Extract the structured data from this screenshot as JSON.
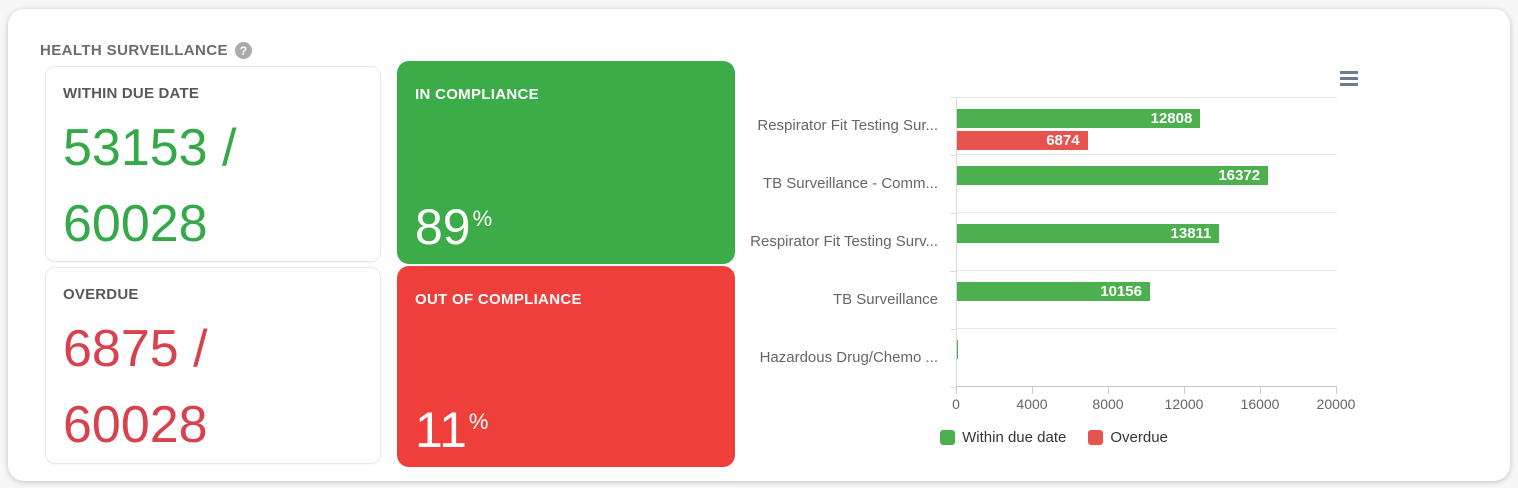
{
  "page": {
    "title": "HEALTH SURVEILLANCE",
    "help_glyph": "?"
  },
  "cards": {
    "within": {
      "label": "WITHIN DUE DATE",
      "line1": "53153 /",
      "line2": "60028"
    },
    "overdue": {
      "label": "OVERDUE",
      "line1": "6875 /",
      "line2": "60028"
    },
    "in_compliance": {
      "label": "IN COMPLIANCE",
      "value": "89",
      "unit": "%"
    },
    "out_of_compliance": {
      "label": "OUT OF COMPLIANCE",
      "value": "11",
      "unit": "%"
    }
  },
  "colors": {
    "green_text": "#35a849",
    "red_text": "#d8424f",
    "green_card_bg": "#3cac49",
    "red_card_bg": "#ee3f3b",
    "bar_green": "#4cb04f",
    "bar_red": "#e7534e"
  },
  "chart": {
    "menu_icon": "hamburger-icon"
  },
  "chart_data": {
    "type": "bar",
    "orientation": "horizontal",
    "title": "",
    "categories": [
      "Respirator Fit Testing Sur...",
      "TB Surveillance - Comm...",
      "Respirator Fit Testing Surv...",
      "TB Surveillance",
      "Hazardous Drug/Chemo ..."
    ],
    "series": [
      {
        "name": "Within due date",
        "color": "#4cb04f",
        "values": [
          12808,
          16372,
          13811,
          10156,
          6
        ]
      },
      {
        "name": "Overdue",
        "color": "#e7534e",
        "values": [
          6874,
          0,
          0,
          0,
          1
        ]
      }
    ],
    "xlim": [
      0,
      20000
    ],
    "x_ticks": [
      "0",
      "4000",
      "8000",
      "12000",
      "16000",
      "20000"
    ],
    "grid": "horizontal-category-separators",
    "legend_position": "bottom-center",
    "legend": [
      {
        "label": "Within due date",
        "color": "#4cb04f"
      },
      {
        "label": "Overdue",
        "color": "#e7534e"
      }
    ]
  }
}
